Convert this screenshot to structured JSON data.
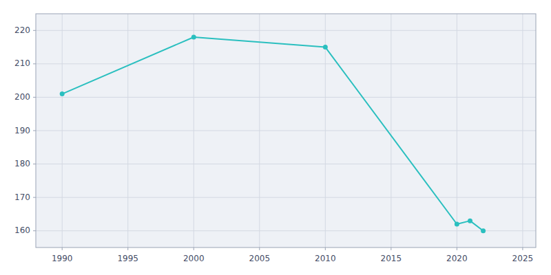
{
  "chart_data": {
    "type": "line",
    "x": [
      1990,
      2000,
      2010,
      2020,
      2021,
      2022
    ],
    "values": [
      201,
      218,
      215,
      162,
      163,
      160
    ],
    "color": "#2abfbf",
    "marker": "circle",
    "xlim": [
      1988,
      2026
    ],
    "ylim": [
      155,
      225
    ],
    "xticks": [
      1990,
      1995,
      2000,
      2005,
      2010,
      2015,
      2020,
      2025
    ],
    "yticks": [
      160,
      170,
      180,
      190,
      200,
      210,
      220
    ],
    "grid": true
  }
}
